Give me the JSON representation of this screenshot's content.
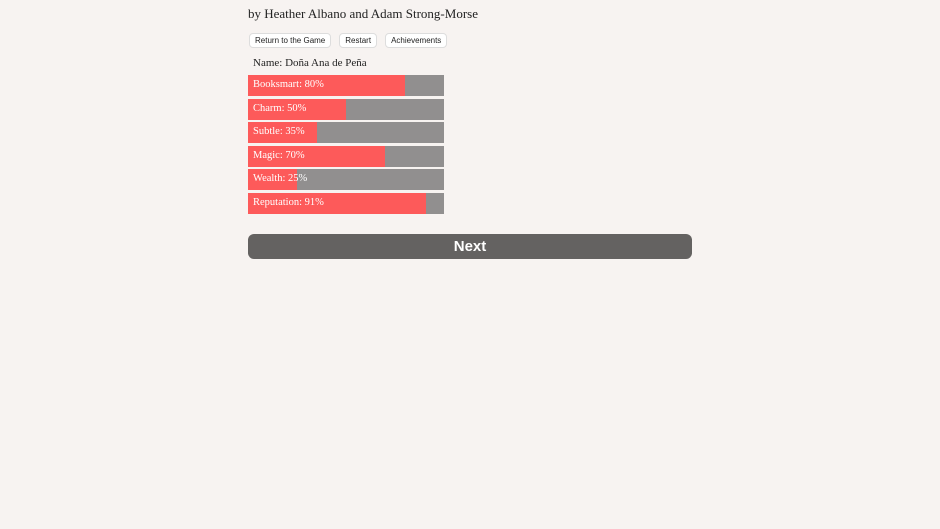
{
  "byline": "by Heather Albano and Adam Strong-Morse",
  "toolbar": {
    "return_label": "Return to the Game",
    "restart_label": "Restart",
    "achievements_label": "Achievements"
  },
  "character": {
    "name_line": "Name: Doña Ana de Peña"
  },
  "stats": [
    {
      "label": "Booksmart: 80%",
      "value": 80
    },
    {
      "label": "Charm: 50%",
      "value": 50
    },
    {
      "label": "Subtle: 35%",
      "value": 35
    },
    {
      "label": "Magic: 70%",
      "value": 70
    },
    {
      "label": "Wealth: 25%",
      "value": 25
    },
    {
      "label": "Reputation: 91%",
      "value": 91
    }
  ],
  "colors": {
    "fill": "#fd5a5a",
    "track": "#918f8f",
    "next_button": "#646261"
  },
  "next_label": "Next"
}
